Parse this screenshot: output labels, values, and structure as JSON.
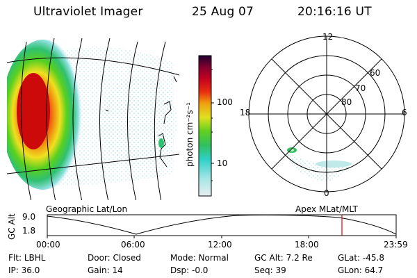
{
  "header": {
    "instrument": "Ultraviolet Imager",
    "date": "25 Aug 07",
    "time": "20:16:16 UT"
  },
  "colorbar": {
    "unit_label": "photon cm⁻²s⁻¹",
    "ticks": [
      "100",
      "10"
    ]
  },
  "polar_plot": {
    "lat_labels": [
      "80",
      "70",
      "60"
    ],
    "mlt_labels": {
      "top": "12",
      "left": "18",
      "right": "6",
      "bottom": "0"
    }
  },
  "projection_labels": {
    "left": "Geographic Lat/Lon",
    "right": "Apex MLat/MLT"
  },
  "altitude_plot": {
    "ylabel": "GC Alt",
    "y_ticks": [
      "9.0",
      "1.8"
    ],
    "x_ticks": [
      "00:00",
      "06:00",
      "12:00",
      "18:00",
      "23:59"
    ],
    "current_time_hours": 20.27
  },
  "info": {
    "row1": [
      {
        "label": "Flt:",
        "value": "LBHL"
      },
      {
        "label": "Door:",
        "value": "Closed"
      },
      {
        "label": "Mode:",
        "value": "Normal"
      },
      {
        "label": "GC Alt:",
        "value": "7.2 Re"
      },
      {
        "label": "GLat:",
        "value": "-45.8"
      }
    ],
    "row2": [
      {
        "label": "IP:",
        "value": "36.0"
      },
      {
        "label": "Gain:",
        "value": "14"
      },
      {
        "label": "Dsp:",
        "value": "-0.0"
      },
      {
        "label": "Seq:",
        "value": "39"
      },
      {
        "label": "GLon:",
        "value": "64.7"
      }
    ]
  },
  "colors": {
    "track_marker": "#e00000"
  }
}
